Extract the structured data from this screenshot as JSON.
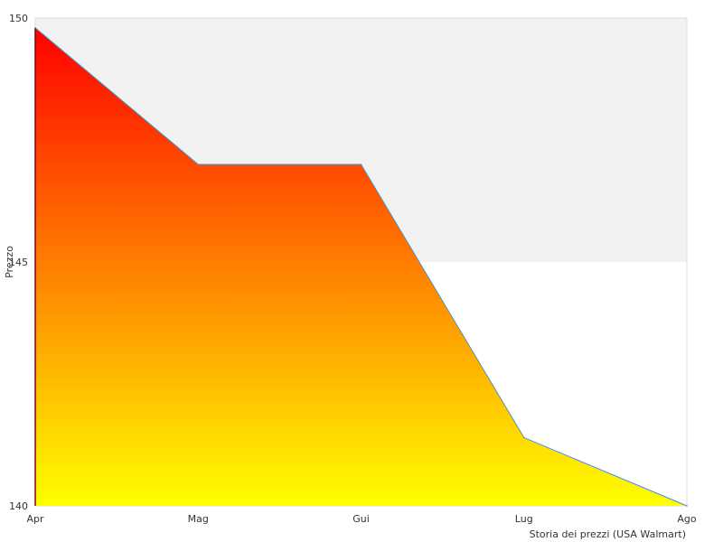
{
  "chart_data": {
    "type": "area",
    "categories": [
      "Apr",
      "Mag",
      "Gui",
      "Lug",
      "Ago"
    ],
    "series": [
      {
        "values": [
          149.8,
          147.0,
          147.0,
          141.4,
          140.0
        ]
      }
    ],
    "ylabel": "Prezzo",
    "xlabel": "Storia dei prezzi (USA Walmart)",
    "ylim": [
      140,
      150
    ],
    "yticks": [
      140,
      145,
      150
    ],
    "grid": true,
    "legend": "none",
    "colors": {
      "fill_top": "#ff0000",
      "fill_bottom": "#ffff00",
      "line": "#4a90c8",
      "band_shaded": "#f2f2f2",
      "plot_border": "#dddddd",
      "first_point": "#8b0000"
    }
  }
}
